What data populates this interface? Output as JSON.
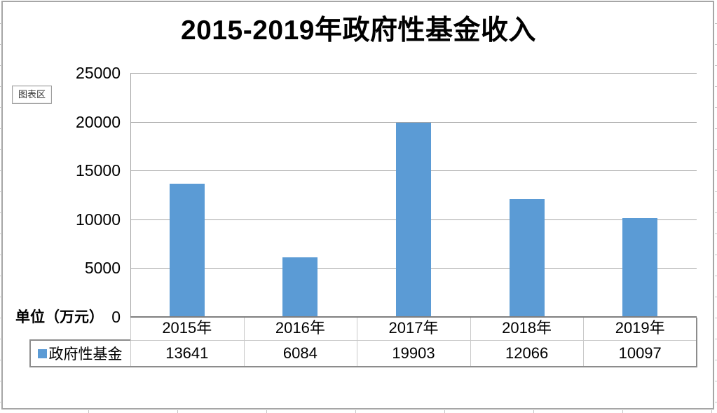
{
  "tooltip": {
    "label": "图表区"
  },
  "chart_data": {
    "type": "bar",
    "title": "2015-2019年政府性基金收入",
    "unit_label": "单位（万元）",
    "categories": [
      "2015年",
      "2016年",
      "2017年",
      "2018年",
      "2019年"
    ],
    "series": [
      {
        "name": "政府性基金",
        "values": [
          13641,
          6084,
          19903,
          12066,
          10097
        ]
      }
    ],
    "y_ticks": [
      0,
      5000,
      10000,
      15000,
      20000,
      25000
    ],
    "ylim": [
      0,
      25000
    ],
    "xlabel": "",
    "ylabel": "单位（万元）",
    "grid": true,
    "legend_position": "table-row-left",
    "bar_color": "#5B9BD5",
    "gridline_color": "#A6A6A6",
    "axis_color": "#7F7F7F"
  }
}
